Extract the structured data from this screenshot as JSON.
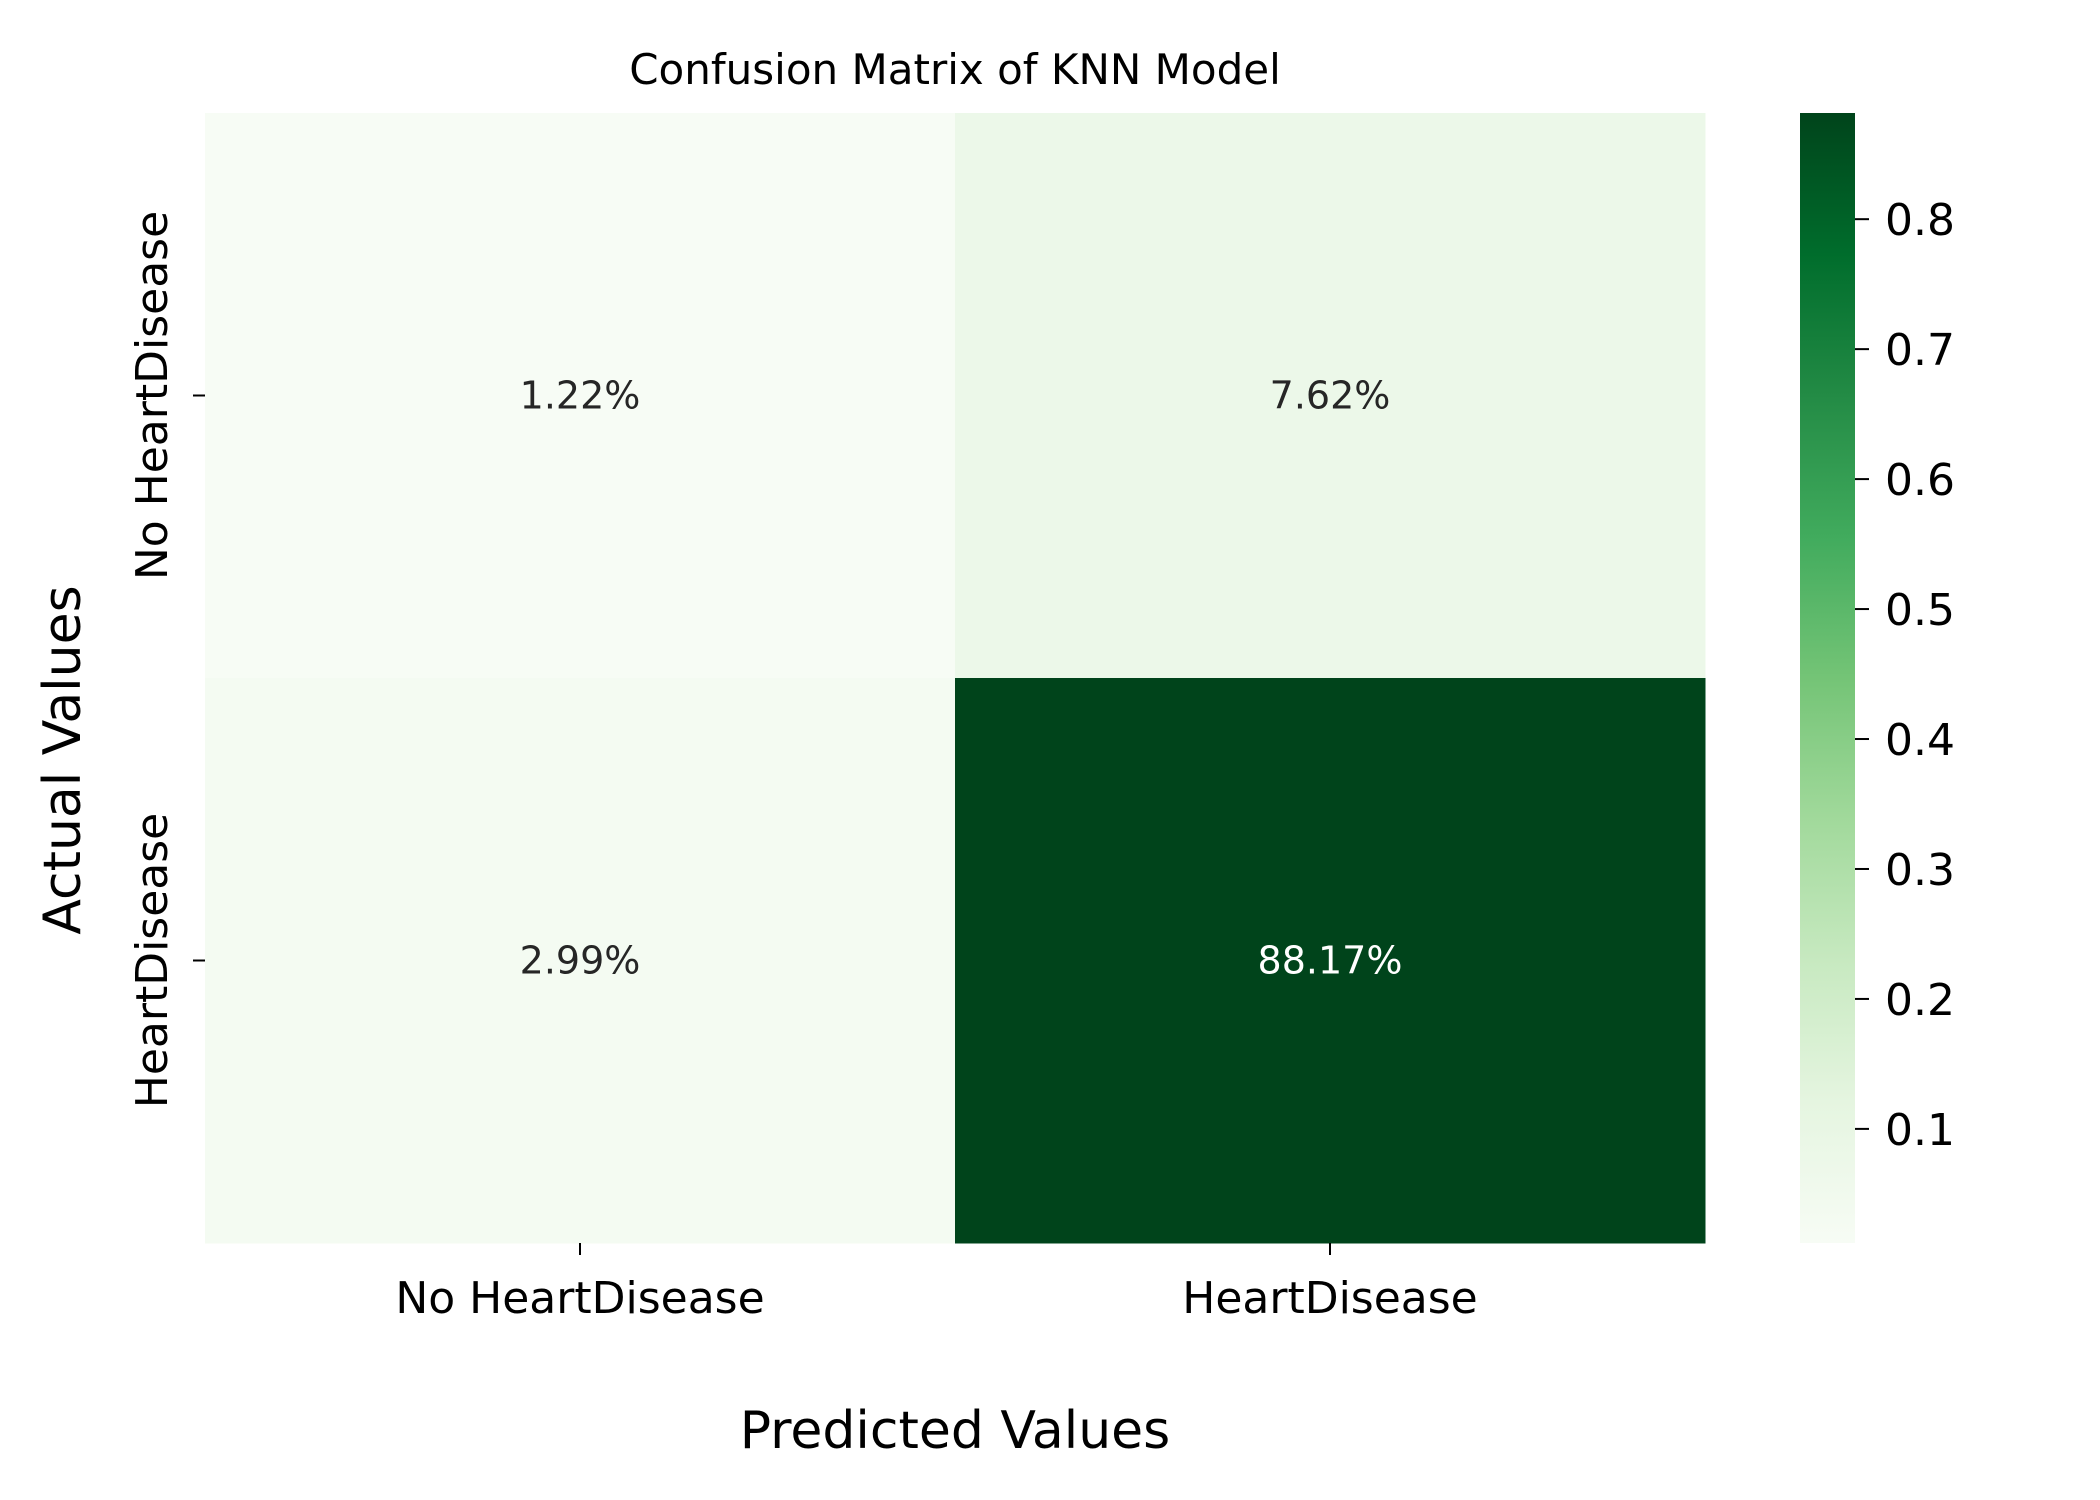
{
  "chart_data": {
    "type": "heatmap",
    "title": "Confusion Matrix of KNN Model",
    "xlabel": "Predicted Values",
    "ylabel": "Actual Values",
    "x_categories": [
      "No HeartDisease",
      "HeartDisease"
    ],
    "y_categories": [
      "No HeartDisease",
      "HeartDisease"
    ],
    "values": [
      [
        0.0122,
        0.0762
      ],
      [
        0.0299,
        0.8817
      ]
    ],
    "cell_labels": [
      [
        "1.22%",
        "7.62%"
      ],
      [
        "2.99%",
        "88.17%"
      ]
    ],
    "colormap": "Greens",
    "colorbar": {
      "vmin": 0.0122,
      "vmax": 0.8817,
      "ticks": [
        0.1,
        0.2,
        0.3,
        0.4,
        0.5,
        0.6,
        0.7,
        0.8
      ],
      "tick_labels": [
        "0.1",
        "0.2",
        "0.3",
        "0.4",
        "0.5",
        "0.6",
        "0.7",
        "0.8"
      ]
    }
  },
  "colors": {
    "cmap_stops": [
      "#f7fcf5",
      "#e5f5e0",
      "#c7e9c0",
      "#a1d99b",
      "#74c476",
      "#41ab5d",
      "#238b45",
      "#006d2c",
      "#00441b"
    ],
    "text_dark": "#262626",
    "text_light": "#ffffff"
  }
}
